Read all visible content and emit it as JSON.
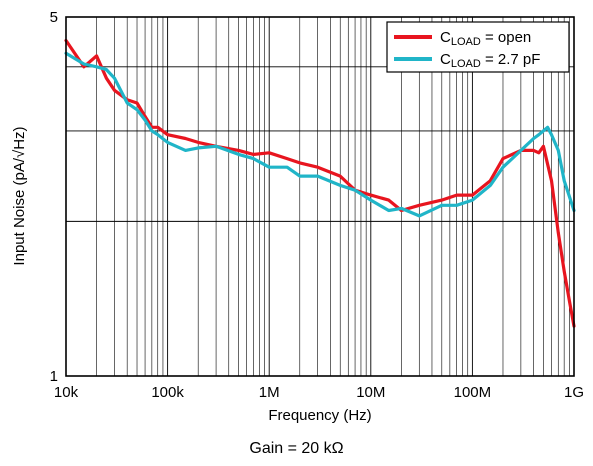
{
  "chart_data": {
    "type": "line",
    "xlabel": "Frequency (Hz)",
    "ylabel": "Input Noise (pA/√Hz)",
    "xscale": "log",
    "yscale": "log",
    "xlim": [
      10000,
      1000000000
    ],
    "ylim": [
      1,
      5
    ],
    "xticks": [
      {
        "value": 10000,
        "label": "10k"
      },
      {
        "value": 100000,
        "label": "100k"
      },
      {
        "value": 1000000,
        "label": "1M"
      },
      {
        "value": 10000000,
        "label": "10M"
      },
      {
        "value": 100000000,
        "label": "100M"
      },
      {
        "value": 1000000000,
        "label": "1G"
      }
    ],
    "yticks": [
      {
        "value": 1,
        "label": "1"
      },
      {
        "value": 5,
        "label": "5"
      }
    ],
    "grid": true,
    "legend_position": "top-right",
    "caption": "Gain = 20 kΩ",
    "series": [
      {
        "name_main": "C",
        "name_sub": "LOAD",
        "name_rest": " = open",
        "color": "#e8151f",
        "x": [
          10000,
          15000,
          20000,
          25000,
          30000,
          40000,
          50000,
          60000,
          70000,
          80000,
          100000,
          150000,
          200000,
          300000,
          500000,
          700000,
          1000000,
          1500000,
          2000000,
          3000000,
          5000000,
          7000000,
          10000000,
          15000000,
          20000000,
          30000000,
          50000000,
          70000000,
          100000000,
          150000000,
          200000000,
          300000000,
          400000000,
          450000000,
          500000000,
          600000000,
          700000000,
          800000000,
          900000000,
          1000000000
        ],
        "y": [
          4.5,
          4.0,
          4.2,
          3.8,
          3.6,
          3.45,
          3.4,
          3.2,
          3.05,
          3.05,
          2.95,
          2.9,
          2.85,
          2.8,
          2.75,
          2.7,
          2.72,
          2.65,
          2.6,
          2.55,
          2.45,
          2.3,
          2.25,
          2.2,
          2.1,
          2.15,
          2.2,
          2.25,
          2.25,
          2.4,
          2.65,
          2.75,
          2.75,
          2.72,
          2.8,
          2.4,
          1.9,
          1.6,
          1.4,
          1.25
        ]
      },
      {
        "name_main": "C",
        "name_sub": "LOAD",
        "name_rest": " = 2.7 pF",
        "color": "#20b5c8",
        "x": [
          10000,
          15000,
          20000,
          25000,
          30000,
          40000,
          50000,
          60000,
          70000,
          80000,
          100000,
          150000,
          200000,
          300000,
          500000,
          700000,
          1000000,
          1500000,
          2000000,
          3000000,
          5000000,
          7000000,
          10000000,
          15000000,
          20000000,
          30000000,
          50000000,
          70000000,
          100000000,
          150000000,
          200000000,
          300000000,
          400000000,
          450000000,
          500000000,
          550000000,
          600000000,
          700000000,
          800000000,
          1000000000
        ],
        "y": [
          4.25,
          4.05,
          4.0,
          3.95,
          3.8,
          3.4,
          3.3,
          3.15,
          3.0,
          2.95,
          2.85,
          2.75,
          2.78,
          2.8,
          2.7,
          2.65,
          2.55,
          2.55,
          2.45,
          2.45,
          2.35,
          2.3,
          2.2,
          2.1,
          2.12,
          2.05,
          2.15,
          2.15,
          2.2,
          2.35,
          2.55,
          2.75,
          2.9,
          2.95,
          3.0,
          3.05,
          2.95,
          2.75,
          2.4,
          2.1
        ]
      }
    ]
  }
}
